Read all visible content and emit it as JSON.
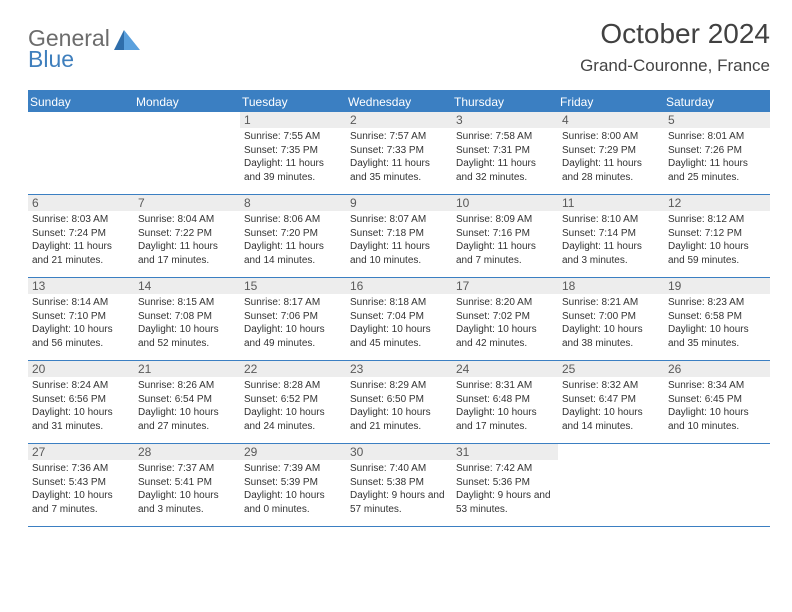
{
  "logo": {
    "general": "General",
    "blue": "Blue"
  },
  "title": {
    "month": "October 2024",
    "location": "Grand-Couronne, France"
  },
  "colors": {
    "accent": "#3b7fc2",
    "daybg": "#ededed",
    "text": "#333333"
  },
  "dow": [
    "Sunday",
    "Monday",
    "Tuesday",
    "Wednesday",
    "Thursday",
    "Friday",
    "Saturday"
  ],
  "days": [
    {
      "n": "",
      "sr": "",
      "ss": "",
      "dl": ""
    },
    {
      "n": "",
      "sr": "",
      "ss": "",
      "dl": ""
    },
    {
      "n": "1",
      "sr": "Sunrise: 7:55 AM",
      "ss": "Sunset: 7:35 PM",
      "dl": "Daylight: 11 hours and 39 minutes."
    },
    {
      "n": "2",
      "sr": "Sunrise: 7:57 AM",
      "ss": "Sunset: 7:33 PM",
      "dl": "Daylight: 11 hours and 35 minutes."
    },
    {
      "n": "3",
      "sr": "Sunrise: 7:58 AM",
      "ss": "Sunset: 7:31 PM",
      "dl": "Daylight: 11 hours and 32 minutes."
    },
    {
      "n": "4",
      "sr": "Sunrise: 8:00 AM",
      "ss": "Sunset: 7:29 PM",
      "dl": "Daylight: 11 hours and 28 minutes."
    },
    {
      "n": "5",
      "sr": "Sunrise: 8:01 AM",
      "ss": "Sunset: 7:26 PM",
      "dl": "Daylight: 11 hours and 25 minutes."
    },
    {
      "n": "6",
      "sr": "Sunrise: 8:03 AM",
      "ss": "Sunset: 7:24 PM",
      "dl": "Daylight: 11 hours and 21 minutes."
    },
    {
      "n": "7",
      "sr": "Sunrise: 8:04 AM",
      "ss": "Sunset: 7:22 PM",
      "dl": "Daylight: 11 hours and 17 minutes."
    },
    {
      "n": "8",
      "sr": "Sunrise: 8:06 AM",
      "ss": "Sunset: 7:20 PM",
      "dl": "Daylight: 11 hours and 14 minutes."
    },
    {
      "n": "9",
      "sr": "Sunrise: 8:07 AM",
      "ss": "Sunset: 7:18 PM",
      "dl": "Daylight: 11 hours and 10 minutes."
    },
    {
      "n": "10",
      "sr": "Sunrise: 8:09 AM",
      "ss": "Sunset: 7:16 PM",
      "dl": "Daylight: 11 hours and 7 minutes."
    },
    {
      "n": "11",
      "sr": "Sunrise: 8:10 AM",
      "ss": "Sunset: 7:14 PM",
      "dl": "Daylight: 11 hours and 3 minutes."
    },
    {
      "n": "12",
      "sr": "Sunrise: 8:12 AM",
      "ss": "Sunset: 7:12 PM",
      "dl": "Daylight: 10 hours and 59 minutes."
    },
    {
      "n": "13",
      "sr": "Sunrise: 8:14 AM",
      "ss": "Sunset: 7:10 PM",
      "dl": "Daylight: 10 hours and 56 minutes."
    },
    {
      "n": "14",
      "sr": "Sunrise: 8:15 AM",
      "ss": "Sunset: 7:08 PM",
      "dl": "Daylight: 10 hours and 52 minutes."
    },
    {
      "n": "15",
      "sr": "Sunrise: 8:17 AM",
      "ss": "Sunset: 7:06 PM",
      "dl": "Daylight: 10 hours and 49 minutes."
    },
    {
      "n": "16",
      "sr": "Sunrise: 8:18 AM",
      "ss": "Sunset: 7:04 PM",
      "dl": "Daylight: 10 hours and 45 minutes."
    },
    {
      "n": "17",
      "sr": "Sunrise: 8:20 AM",
      "ss": "Sunset: 7:02 PM",
      "dl": "Daylight: 10 hours and 42 minutes."
    },
    {
      "n": "18",
      "sr": "Sunrise: 8:21 AM",
      "ss": "Sunset: 7:00 PM",
      "dl": "Daylight: 10 hours and 38 minutes."
    },
    {
      "n": "19",
      "sr": "Sunrise: 8:23 AM",
      "ss": "Sunset: 6:58 PM",
      "dl": "Daylight: 10 hours and 35 minutes."
    },
    {
      "n": "20",
      "sr": "Sunrise: 8:24 AM",
      "ss": "Sunset: 6:56 PM",
      "dl": "Daylight: 10 hours and 31 minutes."
    },
    {
      "n": "21",
      "sr": "Sunrise: 8:26 AM",
      "ss": "Sunset: 6:54 PM",
      "dl": "Daylight: 10 hours and 27 minutes."
    },
    {
      "n": "22",
      "sr": "Sunrise: 8:28 AM",
      "ss": "Sunset: 6:52 PM",
      "dl": "Daylight: 10 hours and 24 minutes."
    },
    {
      "n": "23",
      "sr": "Sunrise: 8:29 AM",
      "ss": "Sunset: 6:50 PM",
      "dl": "Daylight: 10 hours and 21 minutes."
    },
    {
      "n": "24",
      "sr": "Sunrise: 8:31 AM",
      "ss": "Sunset: 6:48 PM",
      "dl": "Daylight: 10 hours and 17 minutes."
    },
    {
      "n": "25",
      "sr": "Sunrise: 8:32 AM",
      "ss": "Sunset: 6:47 PM",
      "dl": "Daylight: 10 hours and 14 minutes."
    },
    {
      "n": "26",
      "sr": "Sunrise: 8:34 AM",
      "ss": "Sunset: 6:45 PM",
      "dl": "Daylight: 10 hours and 10 minutes."
    },
    {
      "n": "27",
      "sr": "Sunrise: 7:36 AM",
      "ss": "Sunset: 5:43 PM",
      "dl": "Daylight: 10 hours and 7 minutes."
    },
    {
      "n": "28",
      "sr": "Sunrise: 7:37 AM",
      "ss": "Sunset: 5:41 PM",
      "dl": "Daylight: 10 hours and 3 minutes."
    },
    {
      "n": "29",
      "sr": "Sunrise: 7:39 AM",
      "ss": "Sunset: 5:39 PM",
      "dl": "Daylight: 10 hours and 0 minutes."
    },
    {
      "n": "30",
      "sr": "Sunrise: 7:40 AM",
      "ss": "Sunset: 5:38 PM",
      "dl": "Daylight: 9 hours and 57 minutes."
    },
    {
      "n": "31",
      "sr": "Sunrise: 7:42 AM",
      "ss": "Sunset: 5:36 PM",
      "dl": "Daylight: 9 hours and 53 minutes."
    },
    {
      "n": "",
      "sr": "",
      "ss": "",
      "dl": ""
    },
    {
      "n": "",
      "sr": "",
      "ss": "",
      "dl": ""
    }
  ]
}
